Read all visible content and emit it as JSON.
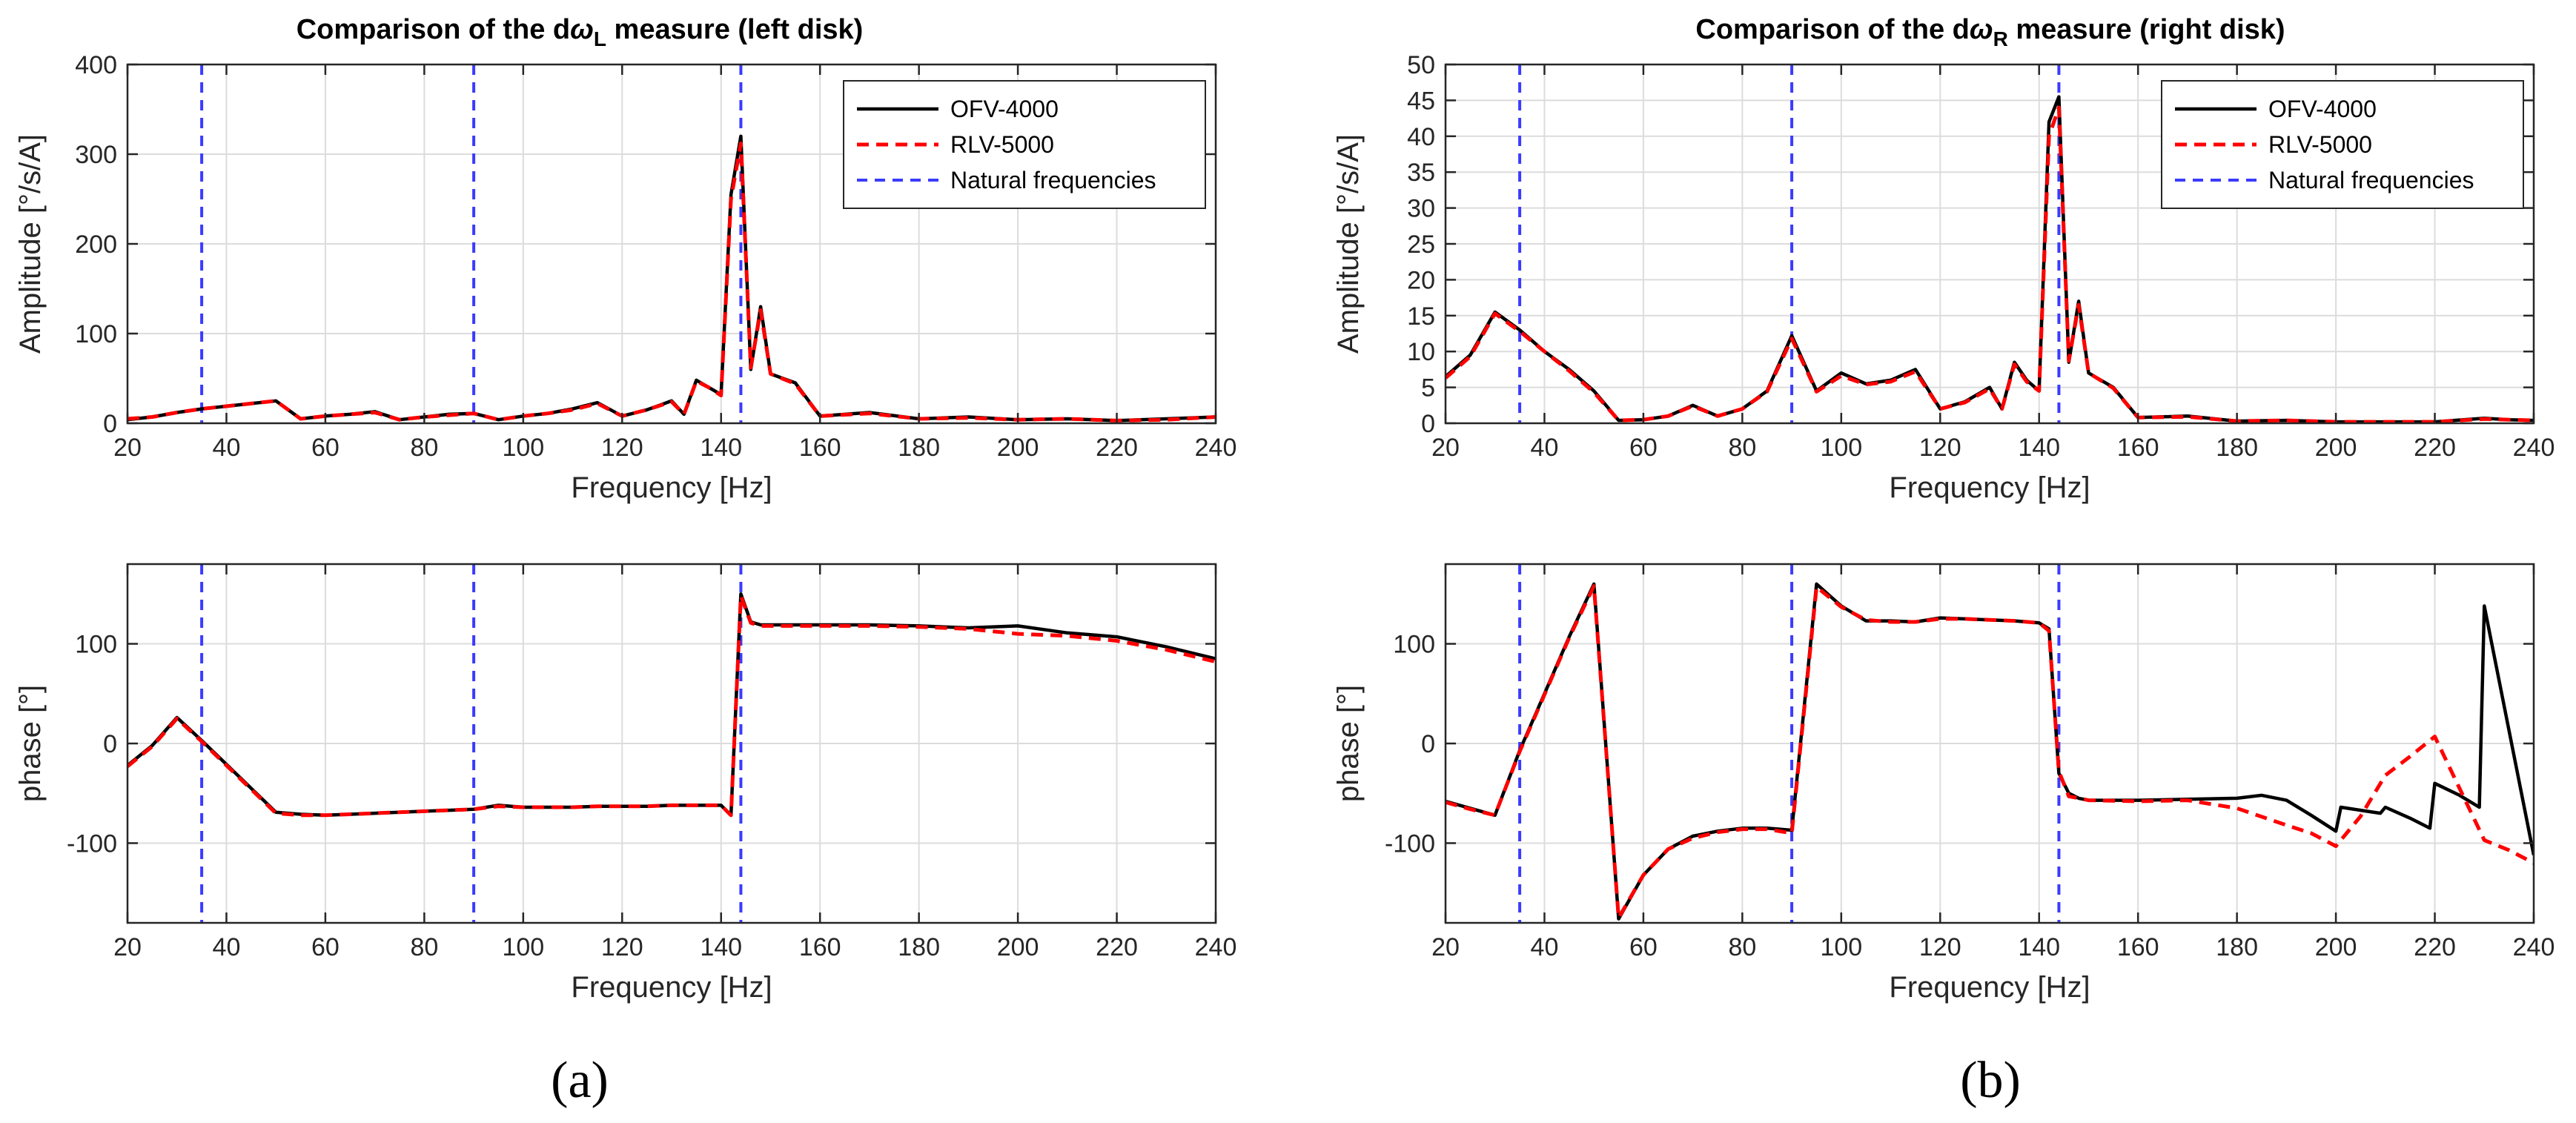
{
  "colors": {
    "ofv": "#000000",
    "rlv": "#ff0000",
    "natural": "#3b3bff",
    "grid": "#dcdcdc",
    "axis": "#262626"
  },
  "captions": {
    "a": "(a)",
    "b": "(b)"
  },
  "chart_data": [
    {
      "id": "left-amplitude",
      "type": "line",
      "title": {
        "pre": "Comparison of the d",
        "omega": "ω",
        "sub": "L",
        "post": " measure (left disk)"
      },
      "xlabel": "Frequency [Hz]",
      "ylabel": "Amplitude [°/s/A]",
      "xlim": [
        20,
        240
      ],
      "ylim": [
        0,
        400
      ],
      "xticks": [
        20,
        40,
        60,
        80,
        100,
        120,
        140,
        160,
        180,
        200,
        220,
        240
      ],
      "yticks": [
        0,
        100,
        200,
        300,
        400
      ],
      "grid": true,
      "legend": {
        "position": "top-right",
        "entries": [
          "OFV-4000",
          "RLV-5000",
          "Natural frequencies"
        ]
      },
      "natural_frequencies": [
        35,
        90,
        144
      ],
      "series": [
        {
          "name": "OFV-4000",
          "style": "solid",
          "x": [
            20,
            25,
            30,
            35,
            40,
            45,
            50,
            55,
            60,
            65,
            70,
            75,
            80,
            85,
            90,
            95,
            100,
            105,
            110,
            115,
            120,
            125,
            130,
            132.5,
            135,
            137.5,
            140,
            142,
            144,
            146,
            148,
            150,
            155,
            160,
            170,
            180,
            190,
            200,
            210,
            220,
            230,
            240
          ],
          "y": [
            4,
            7,
            12,
            16,
            19,
            22,
            25,
            5,
            8,
            10,
            13,
            4,
            7,
            10,
            11,
            4,
            8,
            11,
            16,
            23,
            8,
            15,
            25,
            10,
            48,
            40,
            32,
            255,
            320,
            60,
            130,
            55,
            45,
            8,
            12,
            5,
            7,
            4,
            5,
            3,
            5,
            7
          ]
        },
        {
          "name": "RLV-5000",
          "style": "dashed",
          "x": [
            20,
            25,
            30,
            35,
            40,
            45,
            50,
            55,
            60,
            65,
            70,
            75,
            80,
            85,
            90,
            95,
            100,
            105,
            110,
            115,
            120,
            125,
            130,
            132.5,
            135,
            137.5,
            140,
            142,
            144,
            146,
            148,
            150,
            155,
            160,
            170,
            180,
            190,
            200,
            210,
            220,
            230,
            240
          ],
          "y": [
            5,
            7,
            12,
            16,
            19,
            22,
            25,
            5,
            8,
            10,
            12,
            4,
            7,
            9,
            11,
            4,
            8,
            11,
            15,
            22,
            8,
            15,
            24,
            10,
            47,
            40,
            31,
            250,
            312,
            62,
            126,
            55,
            44,
            8,
            11,
            5,
            6,
            4,
            5,
            3,
            4,
            7
          ]
        }
      ]
    },
    {
      "id": "left-phase",
      "type": "line",
      "xlabel": "Frequency [Hz]",
      "ylabel": "phase [°]",
      "xlim": [
        20,
        240
      ],
      "ylim": [
        -180,
        180
      ],
      "xticks": [
        20,
        40,
        60,
        80,
        100,
        120,
        140,
        160,
        180,
        200,
        220,
        240
      ],
      "yticks": [
        -100,
        0,
        100
      ],
      "grid": true,
      "natural_frequencies": [
        35,
        90,
        144
      ],
      "series": [
        {
          "name": "OFV-4000",
          "style": "solid",
          "x": [
            20,
            25,
            30,
            35,
            40,
            45,
            50,
            55,
            60,
            65,
            70,
            75,
            80,
            85,
            90,
            95,
            100,
            105,
            110,
            115,
            120,
            125,
            130,
            135,
            140,
            142,
            144,
            146,
            148,
            150,
            160,
            170,
            180,
            190,
            200,
            210,
            220,
            230,
            240
          ],
          "y": [
            -22,
            -2,
            26,
            3,
            -21,
            -45,
            -69,
            -71,
            -72,
            -71,
            -70,
            -69,
            -68,
            -67,
            -66,
            -62,
            -64,
            -64,
            -64,
            -63,
            -63,
            -63,
            -62,
            -62,
            -62,
            -72,
            150,
            122,
            119,
            119,
            119,
            119,
            118,
            116,
            118,
            111,
            107,
            97,
            85
          ]
        },
        {
          "name": "RLV-5000",
          "style": "dashed",
          "x": [
            20,
            25,
            30,
            35,
            40,
            45,
            50,
            55,
            60,
            65,
            70,
            75,
            80,
            85,
            90,
            95,
            100,
            105,
            110,
            115,
            120,
            125,
            130,
            135,
            140,
            142,
            144,
            146,
            148,
            150,
            160,
            170,
            180,
            190,
            200,
            210,
            220,
            230,
            240
          ],
          "y": [
            -23,
            -3,
            25,
            2,
            -22,
            -46,
            -70,
            -72,
            -72,
            -71,
            -70,
            -69,
            -68,
            -67,
            -66,
            -63,
            -64,
            -64,
            -64,
            -63,
            -63,
            -63,
            -62,
            -62,
            -62,
            -72,
            148,
            121,
            118,
            118,
            118,
            118,
            117,
            115,
            110,
            108,
            103,
            94,
            82
          ]
        }
      ]
    },
    {
      "id": "right-amplitude",
      "type": "line",
      "title": {
        "pre": "Comparison of the d",
        "omega": "ω",
        "sub": "R",
        "post": " measure (right disk)"
      },
      "xlabel": "Frequency [Hz]",
      "ylabel": "Amplitude [°/s/A]",
      "xlim": [
        20,
        240
      ],
      "ylim": [
        0,
        50
      ],
      "xticks": [
        20,
        40,
        60,
        80,
        100,
        120,
        140,
        160,
        180,
        200,
        220,
        240
      ],
      "yticks": [
        0,
        5,
        10,
        15,
        20,
        25,
        30,
        35,
        40,
        45,
        50
      ],
      "grid": true,
      "legend": {
        "position": "top-right",
        "entries": [
          "OFV-4000",
          "RLV-5000",
          "Natural frequencies"
        ]
      },
      "natural_frequencies": [
        35,
        90,
        144
      ],
      "series": [
        {
          "name": "OFV-4000",
          "style": "solid",
          "x": [
            20,
            25,
            30,
            35,
            40,
            45,
            50,
            55,
            60,
            65,
            70,
            75,
            80,
            85,
            90,
            95,
            100,
            105,
            110,
            115,
            120,
            125,
            130,
            132.5,
            135,
            137.5,
            140,
            142,
            144,
            146,
            148,
            150,
            155,
            160,
            170,
            180,
            190,
            200,
            210,
            220,
            230,
            235,
            240
          ],
          "y": [
            6.5,
            9.5,
            15.5,
            13,
            10,
            7.5,
            4.5,
            0.4,
            0.5,
            1,
            2.5,
            1,
            2,
            4.5,
            12.2,
            4.5,
            7,
            5.5,
            6,
            7.5,
            2,
            3,
            5,
            2,
            8.5,
            6,
            4.5,
            42,
            45.5,
            8.5,
            17,
            7,
            5,
            0.8,
            1,
            0.3,
            0.4,
            0.2,
            0.2,
            0.2,
            0.7,
            0.5,
            0.4
          ]
        },
        {
          "name": "RLV-5000",
          "style": "dashed",
          "x": [
            20,
            25,
            30,
            35,
            40,
            45,
            50,
            55,
            60,
            65,
            70,
            75,
            80,
            85,
            90,
            95,
            100,
            105,
            110,
            115,
            120,
            125,
            130,
            132.5,
            135,
            137.5,
            140,
            142,
            144,
            146,
            148,
            150,
            155,
            160,
            170,
            180,
            190,
            200,
            210,
            220,
            230,
            235,
            240
          ],
          "y": [
            6.3,
            9.3,
            15.3,
            12.8,
            10,
            7.3,
            4.3,
            0.4,
            0.5,
            1,
            2.4,
            1,
            2,
            4.4,
            11.8,
            4.4,
            6.6,
            5.4,
            5.8,
            7.2,
            2,
            2.9,
            4.8,
            2,
            8.2,
            5.8,
            4.5,
            40,
            44,
            8.7,
            16.5,
            7,
            4.9,
            0.8,
            0.9,
            0.3,
            0.4,
            0.2,
            0.2,
            0.2,
            0.6,
            0.5,
            0.4
          ]
        }
      ]
    },
    {
      "id": "right-phase",
      "type": "line",
      "xlabel": "Frequency [Hz]",
      "ylabel": "phase [°]",
      "xlim": [
        20,
        240
      ],
      "ylim": [
        -180,
        180
      ],
      "xticks": [
        20,
        40,
        60,
        80,
        100,
        120,
        140,
        160,
        180,
        200,
        220,
        240
      ],
      "yticks": [
        -100,
        0,
        100
      ],
      "grid": true,
      "natural_frequencies": [
        35,
        90,
        144
      ],
      "series": [
        {
          "name": "OFV-4000",
          "style": "solid",
          "x": [
            20,
            25,
            30,
            35,
            40,
            45,
            50,
            55,
            60,
            65,
            70,
            75,
            80,
            85,
            90,
            95,
            100,
            105,
            110,
            115,
            120,
            125,
            130,
            135,
            140,
            142,
            144,
            146,
            148,
            150,
            160,
            170,
            180,
            185,
            190,
            195,
            200,
            201,
            205,
            209,
            210,
            215,
            219,
            220,
            225,
            229,
            230,
            240
          ],
          "y": [
            -58,
            -65,
            -72,
            -7,
            50,
            107,
            160,
            -176,
            -132,
            -106,
            -93,
            -88,
            -85,
            -85,
            -87,
            160,
            138,
            123,
            123,
            122,
            126,
            125,
            124,
            123,
            121,
            115,
            -30,
            -50,
            -55,
            -57,
            -57,
            -56,
            -55,
            -52,
            -57,
            -72,
            -88,
            -64,
            -67,
            -70,
            -64,
            -75,
            -85,
            -40,
            -52,
            -64,
            138,
            -112
          ]
        },
        {
          "name": "RLV-5000",
          "style": "dashed",
          "x": [
            20,
            25,
            30,
            35,
            40,
            45,
            50,
            55,
            60,
            65,
            70,
            75,
            80,
            85,
            90,
            95,
            100,
            105,
            110,
            115,
            120,
            125,
            130,
            135,
            140,
            142,
            144,
            146,
            148,
            150,
            160,
            170,
            180,
            190,
            195,
            200,
            205,
            210,
            215,
            220,
            225,
            230,
            235,
            240
          ],
          "y": [
            -59,
            -66,
            -72,
            -8,
            49,
            106,
            158,
            -175,
            -132,
            -106,
            -95,
            -89,
            -86,
            -86,
            -90,
            157,
            137,
            124,
            122,
            122,
            125,
            125,
            124,
            123,
            121,
            113,
            -28,
            -53,
            -55,
            -57,
            -58,
            -57,
            -65,
            -82,
            -90,
            -103,
            -73,
            -32,
            -13,
            7,
            -45,
            -97,
            -107,
            -120
          ]
        }
      ]
    }
  ]
}
